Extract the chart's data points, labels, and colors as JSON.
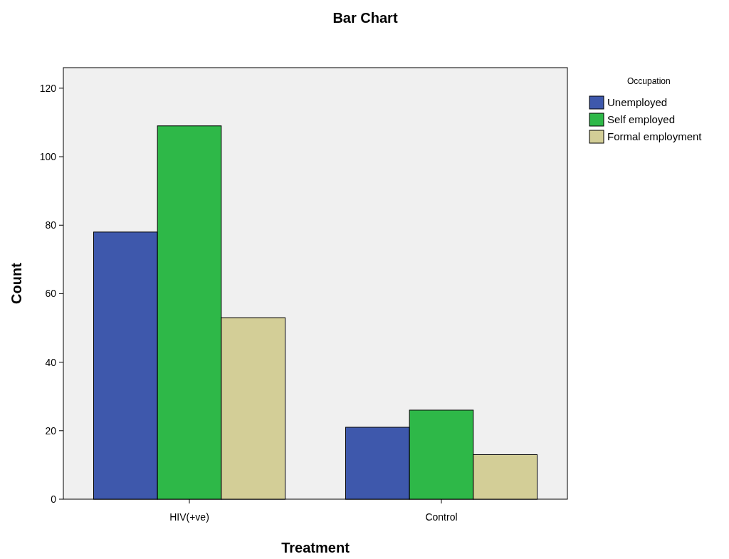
{
  "chart_data": {
    "type": "bar",
    "title": "Bar Chart",
    "xlabel": "Treatment",
    "ylabel": "Count",
    "legend_title": "Occupation",
    "categories": [
      "HIV(+ve)",
      "Control"
    ],
    "series": [
      {
        "name": "Unemployed",
        "color": "#3e58ac",
        "values": [
          78,
          21
        ]
      },
      {
        "name": "Self employed",
        "color": "#2eb848",
        "values": [
          109,
          26
        ]
      },
      {
        "name": "Formal employment",
        "color": "#d3ce97",
        "values": [
          53,
          13
        ]
      }
    ],
    "ylim": [
      0,
      126
    ],
    "yticks": [
      0,
      20,
      40,
      60,
      80,
      100,
      120
    ],
    "grid": false,
    "legend": "right"
  }
}
